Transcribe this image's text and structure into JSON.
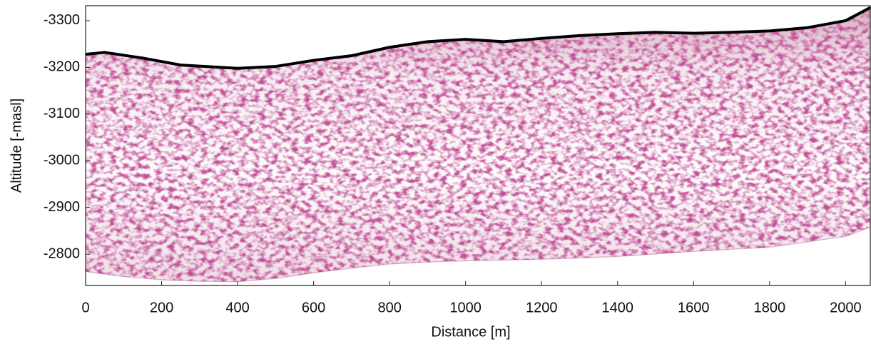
{
  "chart_data": {
    "type": "radargram",
    "xlabel": "Distance [m]",
    "ylabel": "Altitude [-masl]",
    "xlim": [
      0,
      2065
    ],
    "xticks": [
      0,
      200,
      400,
      600,
      800,
      1000,
      1200,
      1400,
      1600,
      1800,
      2000
    ],
    "ylim": [
      -2733,
      -3332
    ],
    "yticks": [
      -3300,
      -3200,
      -3100,
      -3000,
      -2900,
      -2800
    ],
    "color": "#8a1550",
    "line_color": "#000000",
    "surface": {
      "x": [
        0,
        50,
        150,
        250,
        400,
        500,
        600,
        700,
        800,
        900,
        1000,
        1100,
        1200,
        1300,
        1400,
        1500,
        1600,
        1700,
        1800,
        1900,
        2000,
        2065
      ],
      "values": [
        -3228,
        -3232,
        -3220,
        -3205,
        -3198,
        -3202,
        -3215,
        -3225,
        -3243,
        -3255,
        -3260,
        -3255,
        -3262,
        -3268,
        -3272,
        -3275,
        -3273,
        -3275,
        -3278,
        -3285,
        -3300,
        -3328
      ]
    },
    "base": {
      "x": [
        0,
        100,
        200,
        300,
        400,
        500,
        600,
        700,
        800,
        900,
        1000,
        1200,
        1400,
        1600,
        1800,
        2000,
        2065
      ],
      "values": [
        -2763,
        -2752,
        -2745,
        -2742,
        -2741,
        -2748,
        -2760,
        -2770,
        -2779,
        -2783,
        -2786,
        -2789,
        -2795,
        -2806,
        -2815,
        -2838,
        -2858
      ]
    }
  }
}
